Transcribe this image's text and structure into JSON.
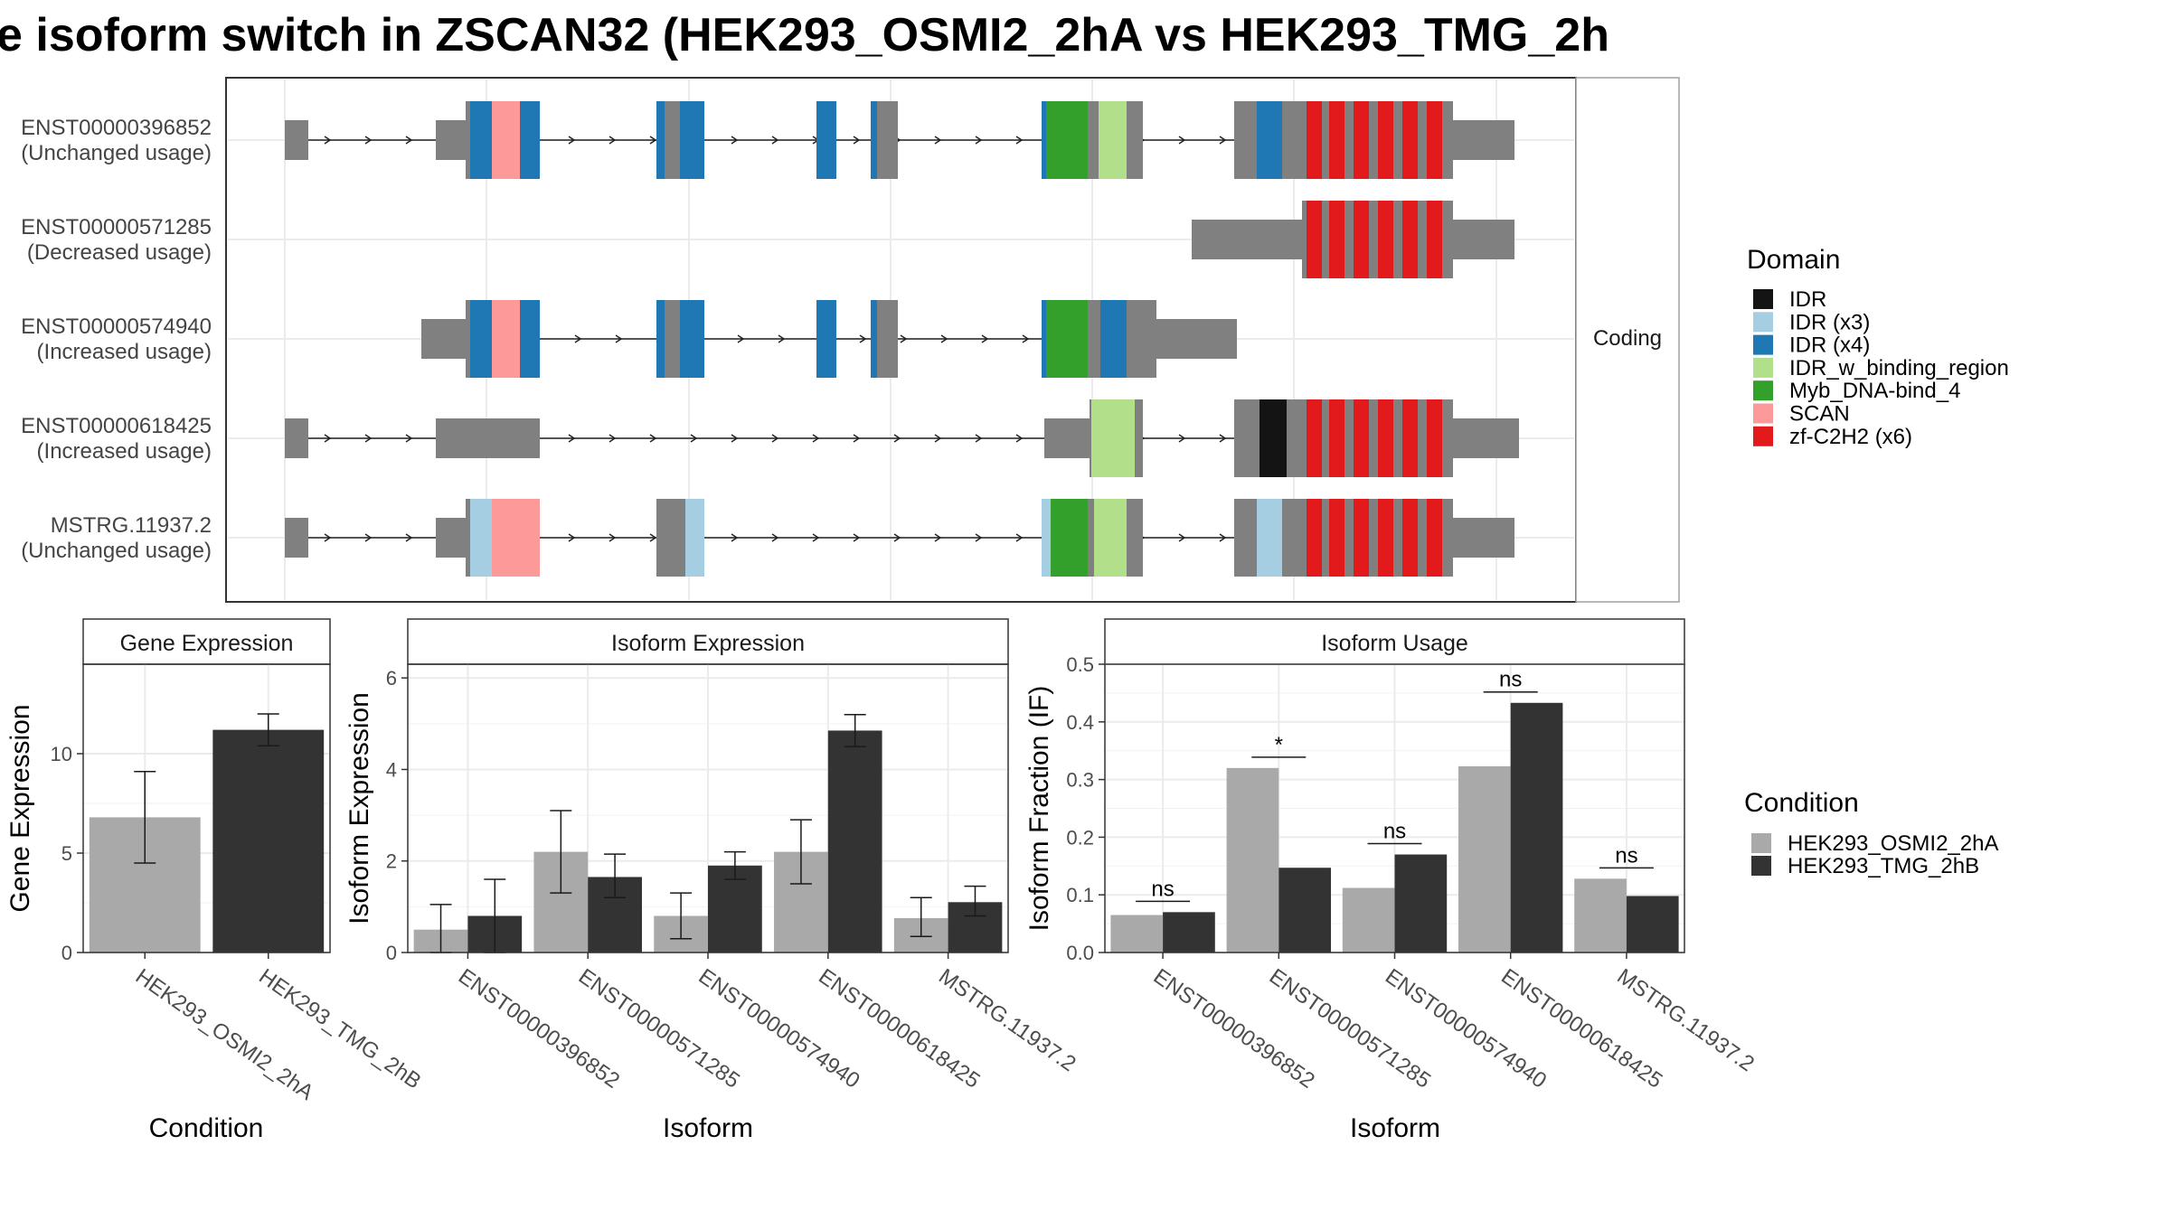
{
  "title": "e isoform switch in ZSCAN32 (HEK293_OSMI2_2hA vs HEK293_TMG_2h",
  "colors": {
    "exon": "#808080",
    "cond_a": "#a9a9a9",
    "cond_b": "#333333",
    "grid": "#ebebeb",
    "panel_border": "#333333",
    "strip_border": "#a0a0a0"
  },
  "structure": {
    "strip_label": "Coding",
    "isoforms": [
      {
        "id": "ENST00000396852",
        "usage": "(Unchanged usage)"
      },
      {
        "id": "ENST00000571285",
        "usage": "(Decreased usage)"
      },
      {
        "id": "ENST00000574940",
        "usage": "(Increased usage)"
      },
      {
        "id": "ENST00000618425",
        "usage": "(Increased usage)"
      },
      {
        "id": "MSTRG.11937.2",
        "usage": "(Unchanged usage)"
      }
    ]
  },
  "legend_domain": {
    "title": "Domain",
    "items": [
      {
        "label": "IDR",
        "color": "#141414"
      },
      {
        "label": "IDR (x3)",
        "color": "#a6cee3"
      },
      {
        "label": "IDR (x4)",
        "color": "#1f78b4"
      },
      {
        "label": "IDR_w_binding_region",
        "color": "#b2df8a"
      },
      {
        "label": "Myb_DNA-bind_4",
        "color": "#33a02c"
      },
      {
        "label": "SCAN",
        "color": "#fb9a99"
      },
      {
        "label": "zf-C2H2 (x6)",
        "color": "#e31a1c"
      }
    ]
  },
  "legend_condition": {
    "title": "Condition",
    "items": [
      {
        "label": "HEK293_OSMI2_2hA",
        "color": "#a9a9a9"
      },
      {
        "label": "HEK293_TMG_2hB",
        "color": "#333333"
      }
    ]
  },
  "chart_data": [
    {
      "type": "bar",
      "title": "Gene Expression",
      "xlabel": "Condition",
      "ylabel": "Gene Expression",
      "categories": [
        "HEK293_OSMI2_2hA",
        "HEK293_TMG_2hB"
      ],
      "values": [
        6.8,
        11.2
      ],
      "error_low": [
        4.5,
        10.4
      ],
      "error_high": [
        9.1,
        12.0
      ],
      "ylim": [
        0,
        14.5
      ],
      "yticks": [
        0,
        5,
        10
      ],
      "ytick_labels": [
        "0",
        "5",
        "10"
      ]
    },
    {
      "type": "bar",
      "title": "Isoform Expression",
      "xlabel": "Isoform",
      "ylabel": "Isoform Expression",
      "categories": [
        "ENST00000396852",
        "ENST00000571285",
        "ENST00000574940",
        "ENST00000618425",
        "MSTRG.11937.2"
      ],
      "series": [
        {
          "name": "HEK293_OSMI2_2hA",
          "values": [
            0.5,
            2.2,
            0.8,
            2.2,
            0.75
          ],
          "error_low": [
            0.0,
            1.3,
            0.3,
            1.5,
            0.35
          ],
          "error_high": [
            1.05,
            3.1,
            1.3,
            2.9,
            1.2
          ]
        },
        {
          "name": "HEK293_TMG_2hB",
          "values": [
            0.8,
            1.65,
            1.9,
            4.85,
            1.1
          ],
          "error_low": [
            0.0,
            1.2,
            1.6,
            4.5,
            0.8
          ],
          "error_high": [
            1.6,
            2.15,
            2.2,
            5.2,
            1.45
          ]
        }
      ],
      "ylim": [
        0,
        6.3
      ],
      "yticks": [
        0,
        2,
        4,
        6
      ],
      "ytick_labels": [
        "0",
        "2",
        "4",
        "6"
      ]
    },
    {
      "type": "bar",
      "title": "Isoform Usage",
      "xlabel": "Isoform",
      "ylabel": "Isoform Fraction (IF)",
      "categories": [
        "ENST00000396852",
        "ENST00000571285",
        "ENST00000574940",
        "ENST00000618425",
        "MSTRG.11937.2"
      ],
      "series": [
        {
          "name": "HEK293_OSMI2_2hA",
          "values": [
            0.065,
            0.32,
            0.112,
            0.323,
            0.128
          ]
        },
        {
          "name": "HEK293_TMG_2hB",
          "values": [
            0.07,
            0.147,
            0.17,
            0.433,
            0.098
          ]
        }
      ],
      "significance": [
        "ns",
        "*",
        "ns",
        "ns",
        "ns"
      ],
      "ylim": [
        0,
        0.5
      ],
      "yticks": [
        0,
        0.1,
        0.2,
        0.3,
        0.4,
        0.5
      ],
      "ytick_labels": [
        "0.0",
        "0.1",
        "0.2",
        "0.3",
        "0.4",
        "0.5"
      ]
    }
  ]
}
